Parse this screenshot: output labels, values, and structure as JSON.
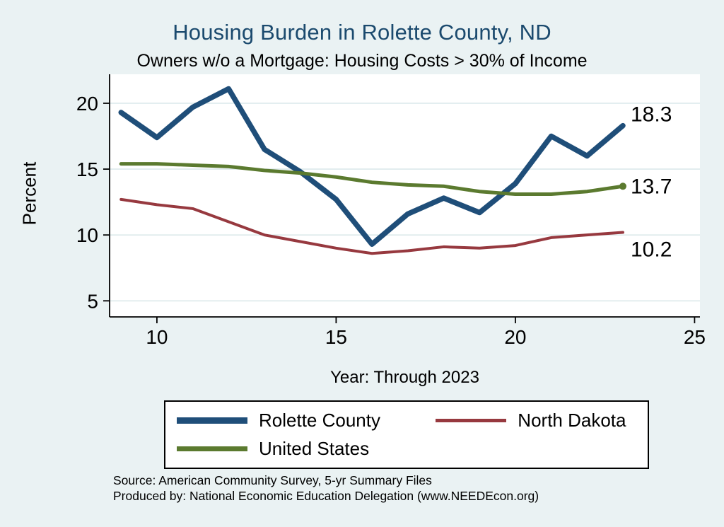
{
  "title": "Housing Burden in Rolette County, ND",
  "subtitle": "Owners w/o a Mortgage: Housing Costs > 30% of Income",
  "axes": {
    "ylabel": "Percent",
    "xlabel": "Year: Through 2023"
  },
  "footer": {
    "line1": "Source: American Community Survey, 5-yr Summary Files",
    "line2": "Produced by: National Economic Education Delegation (www.NEEDEcon.org)"
  },
  "colors": {
    "background": "#eaf2f3",
    "plot_background": "#ffffff",
    "grid": "#dce9eb",
    "axis": "#000000",
    "title": "#1b4a6e",
    "rolette_county": "#1f4e79",
    "north_dakota": "#97393f",
    "united_states": "#5b7a2f"
  },
  "chart_data": {
    "type": "line",
    "title": "Housing Burden in Rolette County, ND",
    "subtitle": "Owners w/o a Mortgage: Housing Costs > 30% of Income",
    "xlabel": "Year: Through 2023",
    "ylabel": "Percent",
    "x": [
      9,
      10,
      11,
      12,
      13,
      14,
      15,
      16,
      17,
      18,
      19,
      20,
      21,
      22,
      23
    ],
    "series": [
      {
        "name": "Rolette County",
        "color_key": "rolette_county",
        "width": 7.5,
        "values": [
          19.3,
          17.4,
          19.7,
          21.1,
          16.5,
          14.8,
          12.7,
          9.3,
          11.6,
          12.8,
          11.7,
          13.9,
          17.5,
          16.0,
          18.3
        ],
        "end_label": "18.3",
        "end_marker": false
      },
      {
        "name": "North Dakota",
        "color_key": "north_dakota",
        "width": 4,
        "values": [
          12.7,
          12.3,
          12.0,
          11.0,
          10.0,
          9.5,
          9.0,
          8.6,
          8.8,
          9.1,
          9.0,
          9.2,
          9.8,
          10.0,
          10.2
        ],
        "end_label": "10.2",
        "end_marker": false
      },
      {
        "name": "United States",
        "color_key": "united_states",
        "width": 5,
        "values": [
          15.4,
          15.4,
          15.3,
          15.2,
          14.9,
          14.7,
          14.4,
          14.0,
          13.8,
          13.7,
          13.3,
          13.1,
          13.1,
          13.3,
          13.7
        ],
        "end_label": "13.7",
        "end_marker": true
      }
    ],
    "yticks": [
      5,
      10,
      15,
      20
    ],
    "xticks": [
      10,
      15,
      20,
      25
    ],
    "xlim": [
      8.68,
      25.15
    ],
    "ylim": [
      3.78,
      22.2
    ],
    "grid": true,
    "legend_position": "bottom"
  },
  "legend": {
    "items": [
      {
        "label": "Rolette County",
        "color_key": "rolette_county"
      },
      {
        "label": "North Dakota",
        "color_key": "north_dakota"
      },
      {
        "label": "United States",
        "color_key": "united_states"
      }
    ]
  }
}
